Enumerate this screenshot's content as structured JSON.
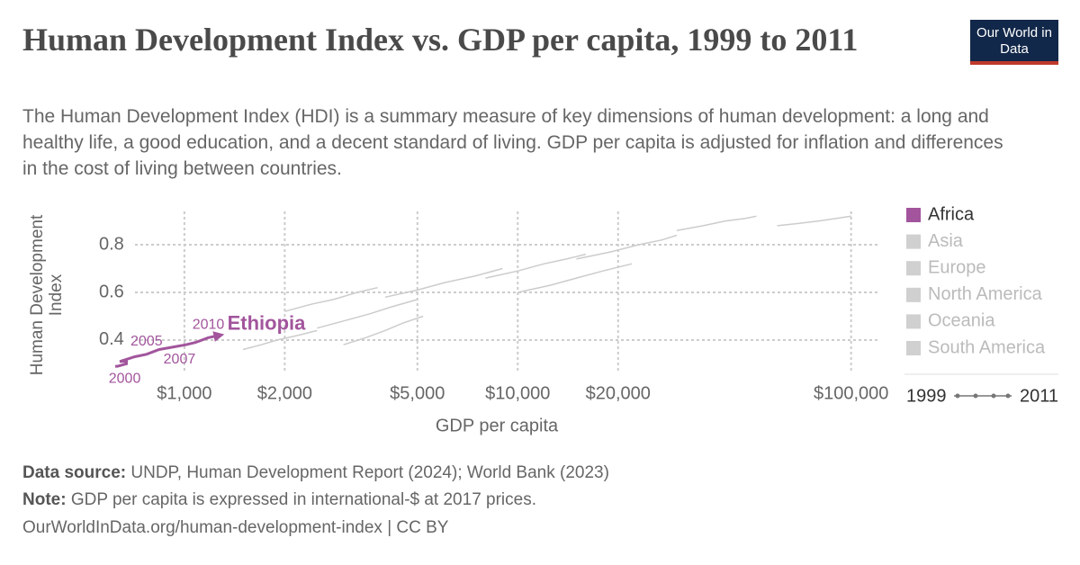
{
  "chart_data": {
    "type": "connected-scatter",
    "title": "Human Development Index vs. GDP per capita, 1999 to 2011",
    "subtitle": "The Human Development Index (HDI) is a summary measure of key dimensions of human development: a long and healthy life, a good education, and a decent standard of living. GDP per capita is adjusted for inflation and differences in the cost of living between countries.",
    "logo": "Our World in Data",
    "x_label": "GDP per capita",
    "y_label": "Human Development Index",
    "x_log": true,
    "grid": true,
    "xlim": [
      590,
      120000
    ],
    "ylim": [
      0.26,
      0.94
    ],
    "xticks": [
      {
        "value": 1000,
        "label": "$1,000"
      },
      {
        "value": 2000,
        "label": "$2,000"
      },
      {
        "value": 5000,
        "label": "$5,000"
      },
      {
        "value": 10000,
        "label": "$10,000"
      },
      {
        "value": 20000,
        "label": "$20,000"
      },
      {
        "value": 100000,
        "label": "$100,000"
      }
    ],
    "yticks": [
      0.4,
      0.6,
      0.8
    ],
    "series": [
      {
        "name": "Ethiopia",
        "color": "#a2559c",
        "x": [
          620,
          630,
          670,
          670,
          640,
          710,
          770,
          840,
          920,
          1010,
          1080,
          1180,
          1280
        ],
        "values": [
          0.29,
          0.29,
          0.3,
          0.31,
          0.31,
          0.33,
          0.34,
          0.36,
          0.37,
          0.38,
          0.39,
          0.41,
          0.42
        ],
        "point_labels": [
          null,
          "2000",
          null,
          null,
          null,
          null,
          "2005",
          null,
          "2007",
          null,
          null,
          "2010",
          null
        ]
      }
    ],
    "background_color": "#cccccc",
    "background_series": [
      {
        "x": [
          1500,
          1700,
          1900,
          2200,
          2500
        ],
        "values": [
          0.36,
          0.38,
          0.4,
          0.42,
          0.44
        ]
      },
      {
        "x": [
          2500,
          3000,
          3600,
          4200,
          5000
        ],
        "values": [
          0.45,
          0.48,
          0.51,
          0.54,
          0.57
        ]
      },
      {
        "x": [
          4000,
          5000,
          6000,
          7500,
          9000
        ],
        "values": [
          0.58,
          0.61,
          0.64,
          0.67,
          0.7
        ]
      },
      {
        "x": [
          8000,
          10000,
          12000,
          14000,
          16000
        ],
        "values": [
          0.66,
          0.69,
          0.72,
          0.74,
          0.76
        ]
      },
      {
        "x": [
          15000,
          19000,
          23000,
          27000,
          30000
        ],
        "values": [
          0.74,
          0.77,
          0.8,
          0.82,
          0.84
        ]
      },
      {
        "x": [
          30000,
          36000,
          42000,
          48000,
          52000
        ],
        "values": [
          0.86,
          0.88,
          0.9,
          0.91,
          0.92
        ]
      },
      {
        "x": [
          60000,
          70000,
          80000,
          90000,
          100000
        ],
        "values": [
          0.88,
          0.89,
          0.9,
          0.91,
          0.92
        ]
      },
      {
        "x": [
          3000,
          3500,
          4000,
          4500,
          5200
        ],
        "values": [
          0.38,
          0.41,
          0.44,
          0.47,
          0.5
        ]
      },
      {
        "x": [
          10000,
          12500,
          15000,
          18000,
          22000
        ],
        "values": [
          0.6,
          0.63,
          0.66,
          0.69,
          0.72
        ]
      },
      {
        "x": [
          2000,
          2400,
          2800,
          3300,
          3800
        ],
        "values": [
          0.52,
          0.55,
          0.57,
          0.6,
          0.62
        ]
      }
    ],
    "legend": [
      {
        "name": "Africa",
        "color": "#a2559c"
      },
      {
        "name": "Asia",
        "color": "#d0d0d0"
      },
      {
        "name": "Europe",
        "color": "#d0d0d0"
      },
      {
        "name": "North America",
        "color": "#d0d0d0"
      },
      {
        "name": "Oceania",
        "color": "#d0d0d0"
      },
      {
        "name": "South America",
        "color": "#d0d0d0"
      }
    ],
    "time_range": [
      1999,
      2011
    ],
    "source_label": "Data source:",
    "source": "UNDP, Human Development Report (2024); World Bank (2023)",
    "note_label": "Note:",
    "note": "GDP per capita is expressed in international-$ at 2017 prices.",
    "url": "OurWorldInData.org/human-development-index | CC BY"
  }
}
